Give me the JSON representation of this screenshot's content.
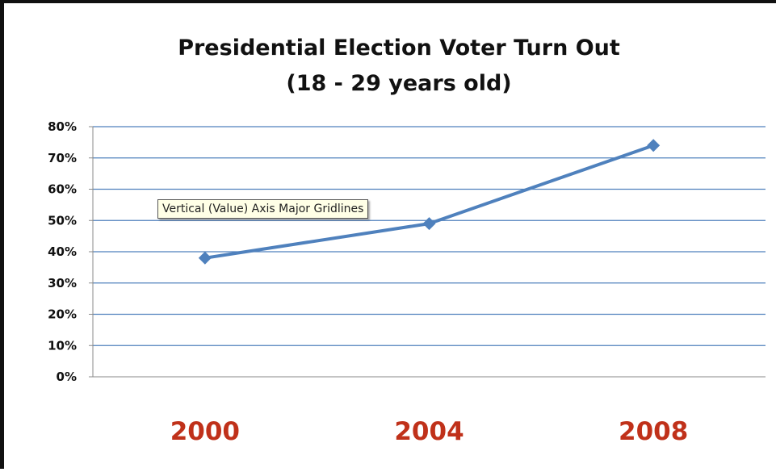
{
  "chart_data": {
    "type": "line",
    "title": "Presidential Election Voter Turn Out",
    "subtitle": "(18 - 29 years old)",
    "categories": [
      "2000",
      "2004",
      "2008"
    ],
    "series": [
      {
        "values": [
          38,
          49,
          74
        ]
      }
    ],
    "ylim": [
      0,
      80
    ],
    "y_ticks": [
      "0%",
      "10%",
      "20%",
      "30%",
      "40%",
      "50%",
      "60%",
      "70%",
      "80%"
    ],
    "grid": true,
    "legend": "none",
    "colors": {
      "line": "#4f81bd",
      "gridline": "#4f81bd",
      "x_tick_labels": "#c0311a"
    }
  },
  "tooltip": {
    "text": "Vertical (Value) Axis Major Gridlines"
  }
}
